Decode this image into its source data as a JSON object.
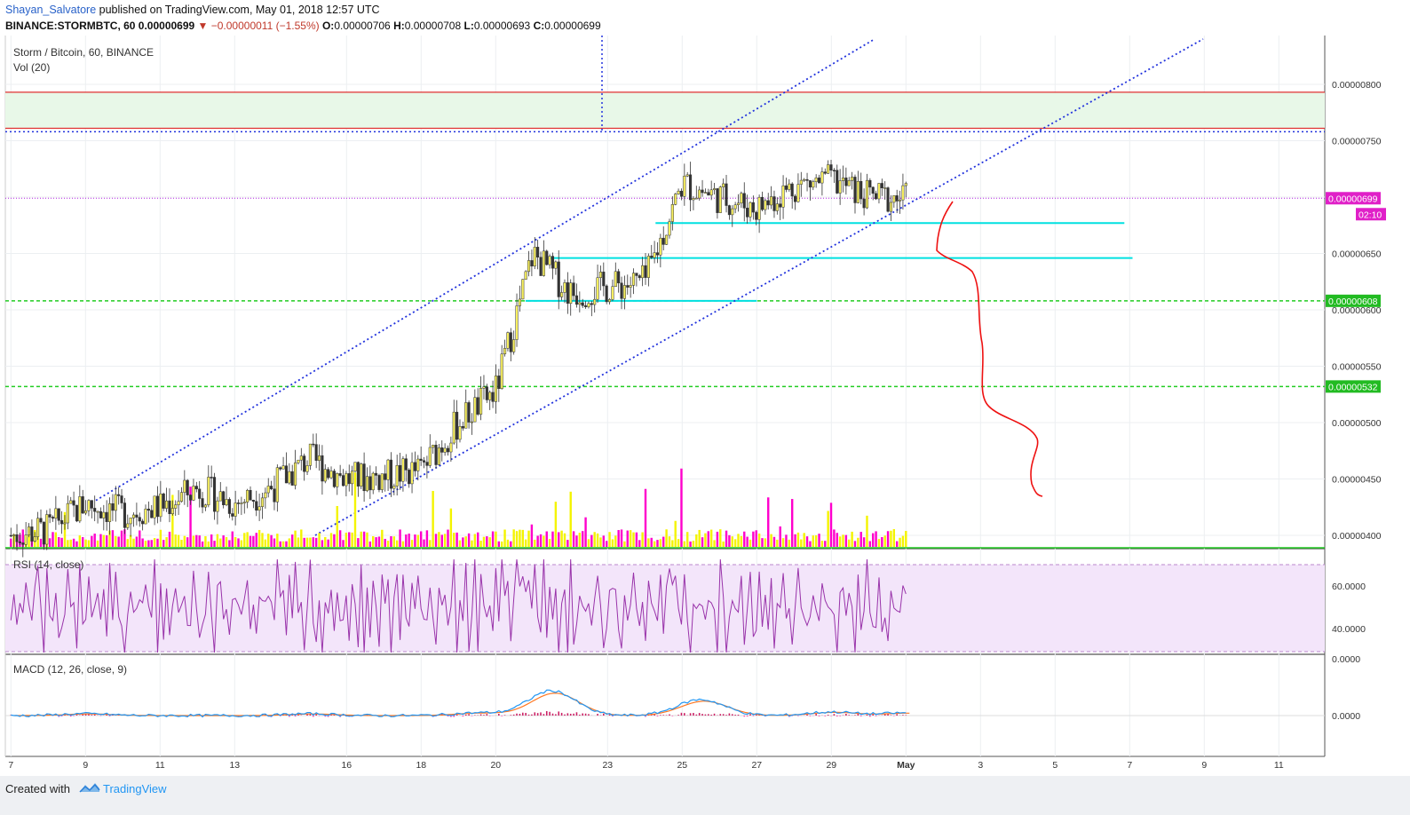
{
  "header": {
    "author": "Shayan_Salvatore",
    "published": " published on TradingView.com, May 01, 2018 12:57 UTC",
    "symbol_line": "BINANCE:STORMBTC, 60  0.00000699",
    "change": "▼ −0.00000011 (−1.55%)",
    "ohlc": [
      {
        "k": "O:",
        "v": "0.00000706"
      },
      {
        "k": "H:",
        "v": "0.00000708"
      },
      {
        "k": "L:",
        "v": "0.00000693"
      },
      {
        "k": "C:",
        "v": "0.00000699"
      }
    ]
  },
  "panes": {
    "main_title": "Storm / Bitcoin, 60, BINANCE",
    "vol_title": "Vol (20)",
    "rsi_title": "RSI (14, close)",
    "macd_title": "MACD (12, 26, close, 9)"
  },
  "price_axis": {
    "ticks": [
      "0.00000800",
      "0.00000750",
      "0.00000650",
      "0.00000600",
      "0.00000550",
      "0.00000500",
      "0.00000450",
      "0.00000400"
    ],
    "badges": [
      {
        "text": "0.00000699",
        "color": "#e020c8"
      },
      {
        "text": "02:10",
        "color": "#e020c8"
      },
      {
        "text": "0.00000608",
        "color": "#22bb22"
      },
      {
        "text": "0.00000532",
        "color": "#22bb22"
      }
    ]
  },
  "rsi_axis": [
    "60.0000",
    "40.0000"
  ],
  "macd_axis": [
    "0.0000",
    "0.0000"
  ],
  "time_axis": [
    "7",
    "9",
    "11",
    "13",
    "16",
    "18",
    "20",
    "23",
    "25",
    "27",
    "29",
    "May",
    "3",
    "5",
    "7",
    "9",
    "11"
  ],
  "footer": {
    "created": "Created with",
    "brand": "TradingView"
  },
  "colors": {
    "resistance_red": "#e03030",
    "support_green": "#22cc22",
    "level_cyan": "#00e0e0",
    "channel_blue": "#2233dd",
    "last_price": "#b020e0",
    "rsi_line": "#9933aa",
    "rsi_bg": "#f3e5fa",
    "macd_line": "#2196f3",
    "signal_line": "#ff7722",
    "vol_up": "#f4f400",
    "vol_down": "#ff00cc",
    "projection": "#ee1111",
    "zone_fill": "#e8f8e8"
  },
  "chart_data": {
    "type": "candlestick",
    "title": "Storm / Bitcoin, 60, BINANCE",
    "x_range": [
      "Apr 7",
      "May 11"
    ],
    "y_range": [
      3.9e-06,
      8.4e-06
    ],
    "price_path": [
      {
        "date": "Apr 7",
        "price": 4e-06
      },
      {
        "date": "Apr 8",
        "price": 4.05e-06
      },
      {
        "date": "Apr 9",
        "price": 4.28e-06
      },
      {
        "date": "Apr 10",
        "price": 4.2e-06
      },
      {
        "date": "Apr 11",
        "price": 4.25e-06
      },
      {
        "date": "Apr 12",
        "price": 4.42e-06
      },
      {
        "date": "Apr 13",
        "price": 4.28e-06
      },
      {
        "date": "Apr 14",
        "price": 4.43e-06
      },
      {
        "date": "Apr 15",
        "price": 4.68e-06
      },
      {
        "date": "Apr 16",
        "price": 4.5e-06
      },
      {
        "date": "Apr 17",
        "price": 4.52e-06
      },
      {
        "date": "Apr 18",
        "price": 4.58e-06
      },
      {
        "date": "Apr 19",
        "price": 5e-06
      },
      {
        "date": "Apr 20",
        "price": 5.28e-06
      },
      {
        "date": "Apr 21",
        "price": 6.5e-06
      },
      {
        "date": "Apr 22",
        "price": 6.15e-06
      },
      {
        "date": "Apr 23",
        "price": 6.2e-06
      },
      {
        "date": "Apr 24",
        "price": 6.25e-06
      },
      {
        "date": "Apr 25",
        "price": 7.12e-06
      },
      {
        "date": "Apr 26",
        "price": 7e-06
      },
      {
        "date": "Apr 27",
        "price": 6.9e-06
      },
      {
        "date": "Apr 28",
        "price": 7.1e-06
      },
      {
        "date": "Apr 29",
        "price": 7.15e-06
      },
      {
        "date": "Apr 30",
        "price": 7e-06
      },
      {
        "date": "May 1",
        "price": 6.99e-06
      }
    ],
    "horizontal_levels": [
      {
        "price": 7.93e-06,
        "style": "solid red"
      },
      {
        "price": 7.58e-06,
        "style": "dotted blue (top of resistance zone)"
      },
      {
        "price": 6.99e-06,
        "style": "last price"
      },
      {
        "price": 6.77e-06,
        "style": "cyan support"
      },
      {
        "price": 6.46e-06,
        "style": "cyan support"
      },
      {
        "price": 6.08e-06,
        "style": "cyan / dashed green"
      },
      {
        "price": 5.32e-06,
        "style": "dashed green"
      }
    ],
    "last": {
      "open": 7.06e-06,
      "high": 7.08e-06,
      "low": 6.93e-06,
      "close": 6.99e-06,
      "change": -1.1e-07,
      "change_pct": -1.55
    },
    "rsi_range": [
      30,
      70
    ],
    "macd_peaks": [
      {
        "date": "Apr 21",
        "value": 4e-07
      },
      {
        "date": "Apr 25",
        "value": 3e-07
      }
    ]
  }
}
